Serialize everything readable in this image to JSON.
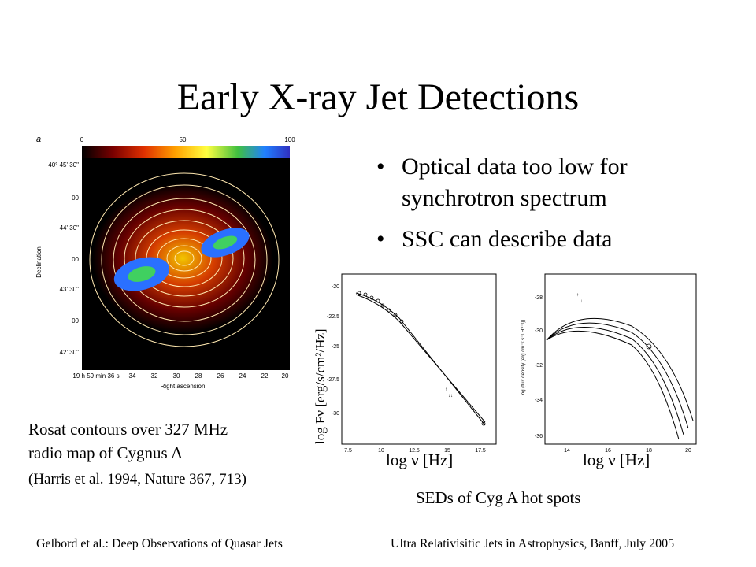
{
  "title": "Early X-ray Jet Detections",
  "bullets": [
    "Optical data too low for synchrotron spectrum",
    "SSC can describe data"
  ],
  "radio_map": {
    "panel_letter": "a",
    "colorbar_ticks": [
      "0",
      "50",
      "100"
    ],
    "dec_ticks": [
      "40° 45' 30\"",
      "00",
      "44' 30\"",
      "00",
      "43' 30\"",
      "00",
      "42' 30\""
    ],
    "ra_ticks": [
      "19 h 59 min 36 s",
      "34",
      "32",
      "30",
      "28",
      "26",
      "24",
      "22",
      "20"
    ],
    "xlabel": "Right ascension",
    "ylabel": "Declination"
  },
  "caption": {
    "line1": "Rosat contours over 327 MHz",
    "line2": "radio map of Cygnus A",
    "reference": "(Harris et al. 1994, Nature 367, 713)"
  },
  "sed_plots": {
    "ylabel": "log Fν [erg/s/cm²/Hz]",
    "xlabel_left": "log ν [Hz]",
    "xlabel_right": "log ν [Hz]",
    "caption": "SEDs of Cyg A hot spots",
    "left_y_ticks": [
      "-20",
      "-22.5",
      "-25",
      "-27.5",
      "-30"
    ],
    "left_x_ticks": [
      "7.5",
      "10",
      "12.5",
      "15",
      "17.5"
    ],
    "right_y_ticks": [
      "-28",
      "-30",
      "-32",
      "-34",
      "-36"
    ],
    "right_x_ticks": [
      "14",
      "16",
      "18",
      "20"
    ],
    "right_inner_ylabel": "log (flux density (erg cm⁻² s⁻¹ Hz⁻¹))"
  },
  "footer": {
    "left": "Gelbord et al.: Deep Observations of Quasar Jets",
    "right": "Ultra Relativisitic Jets in Astrophysics, Banff, July 2005"
  }
}
